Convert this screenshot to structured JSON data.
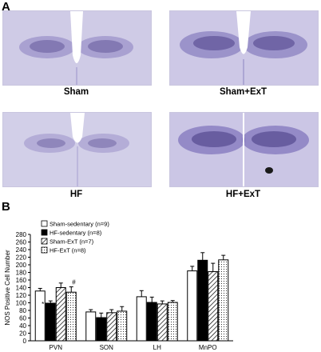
{
  "panels": {
    "a_label": "A",
    "b_label": "B"
  },
  "micrographs": [
    {
      "label": "Sham"
    },
    {
      "label": "Sham+ExT"
    },
    {
      "label": "HF"
    },
    {
      "label": "HF+ExT"
    }
  ],
  "colors": {
    "tissue_background": "#cfcbe6",
    "stain_dark": "#3b2f7a",
    "ventricle": "#ffffff"
  },
  "chart_data": {
    "type": "bar",
    "ylabel": "NOS Positive Cell Number",
    "ylim": [
      0,
      280
    ],
    "yticks": [
      0,
      20,
      40,
      60,
      80,
      100,
      120,
      140,
      160,
      180,
      200,
      220,
      240,
      260,
      280
    ],
    "categories": [
      "PVN",
      "SON",
      "LH",
      "MnPO"
    ],
    "series": [
      {
        "name": "Sham-sedentary (n=9)",
        "pattern": "white",
        "values": [
          131,
          76,
          116,
          184
        ],
        "errors": [
          7,
          6,
          16,
          12
        ]
      },
      {
        "name": "HF-sedentary (n=8)",
        "pattern": "black",
        "values": [
          99,
          61,
          101,
          212
        ],
        "errors": [
          6,
          12,
          14,
          20
        ]
      },
      {
        "name": "Sham-ExT (n=7)",
        "pattern": "hatch",
        "values": [
          140,
          74,
          97,
          182
        ],
        "errors": [
          12,
          8,
          8,
          22
        ]
      },
      {
        "name": "HF-ExT (n=8)",
        "pattern": "dots",
        "values": [
          128,
          78,
          101,
          213
        ],
        "errors": [
          14,
          12,
          5,
          12
        ]
      }
    ],
    "annotations": [
      {
        "text": "*",
        "category": "PVN",
        "series": "HF-sedentary (n=8)"
      },
      {
        "text": "#",
        "category": "PVN",
        "series": "HF-ExT (n=8)"
      }
    ]
  }
}
